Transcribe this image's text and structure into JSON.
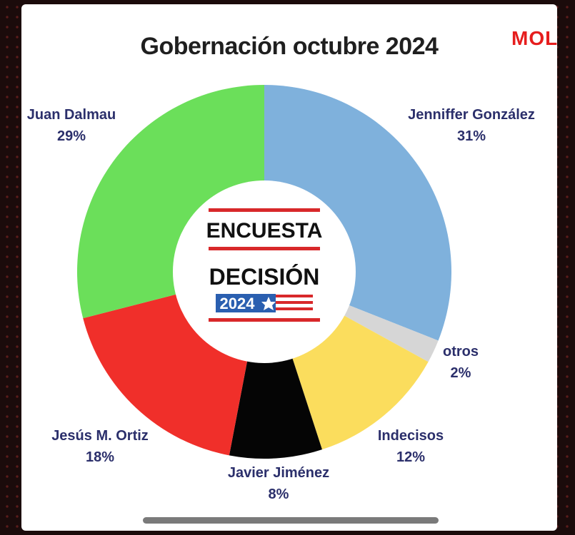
{
  "brand": {
    "text": "MOL"
  },
  "chart_data": {
    "type": "pie",
    "title": "Gobernación octubre 2024",
    "center_logo": {
      "line1": "ENCUESTA",
      "line2": "DECISIÓN",
      "year": "2024"
    },
    "slices": [
      {
        "name": "Jenniffer González",
        "value": 31,
        "label": "31%",
        "color": "#7fb1dc"
      },
      {
        "name": "otros",
        "value": 2,
        "label": "2%",
        "color": "#d6d6d6"
      },
      {
        "name": "Indecisos",
        "value": 12,
        "label": "12%",
        "color": "#fbdd5d"
      },
      {
        "name": "Javier Jiménez",
        "value": 8,
        "label": "8%",
        "color": "#050505"
      },
      {
        "name": "Jesús M. Ortiz",
        "value": 18,
        "label": "18%",
        "color": "#f02f2a"
      },
      {
        "name": "Juan Dalmau",
        "value": 29,
        "label": "29%",
        "color": "#6bdf5a"
      }
    ]
  }
}
